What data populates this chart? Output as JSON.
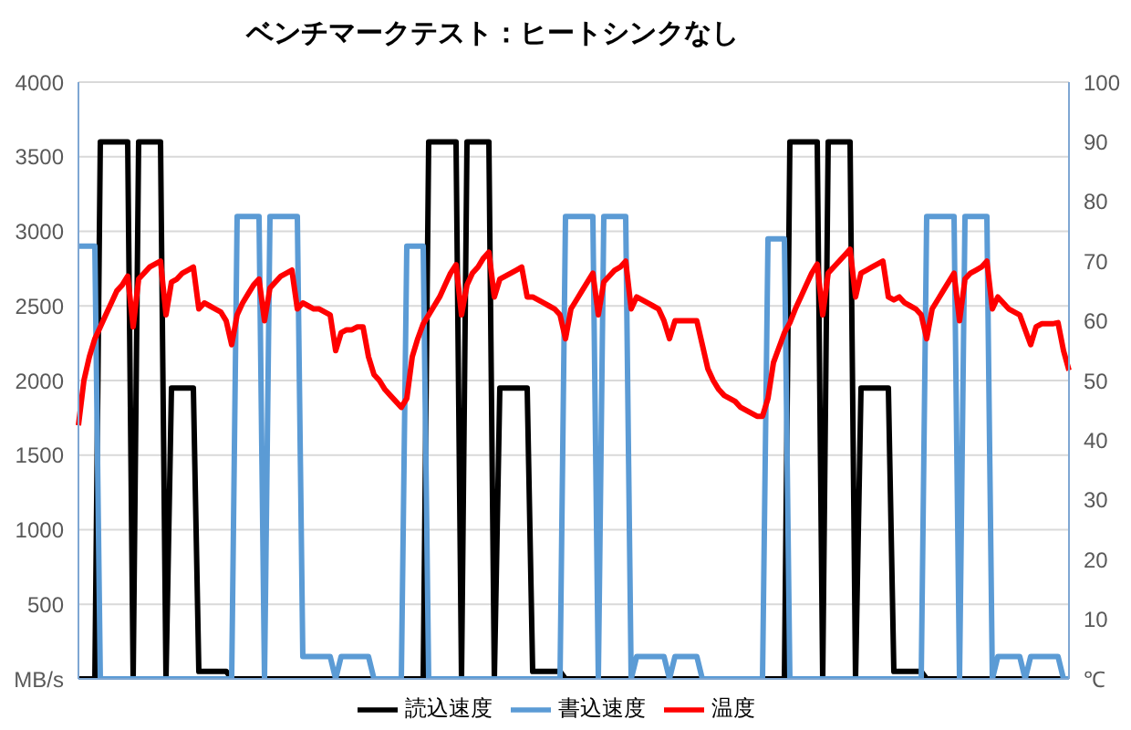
{
  "chart_data": {
    "type": "line",
    "title": "ベンチマークテスト：ヒートシンクなし",
    "categories": [
      null,
      null,
      null,
      null,
      null,
      null,
      null,
      null,
      null,
      null,
      null,
      null,
      null,
      null,
      null,
      null,
      null,
      null,
      null,
      null,
      null,
      null,
      null,
      null,
      null,
      null,
      null,
      null,
      null,
      null,
      null,
      null,
      null,
      null,
      null,
      null,
      null,
      null,
      null,
      null,
      null,
      null,
      null,
      null,
      null,
      null,
      null,
      null,
      null,
      null,
      null,
      null,
      null,
      null,
      null,
      null,
      null,
      null,
      null,
      null,
      null,
      null,
      null,
      null,
      null,
      null,
      null,
      null,
      null,
      null,
      null,
      null,
      null,
      null,
      null,
      null,
      null,
      null,
      null,
      null,
      null,
      null,
      null,
      null,
      null,
      null,
      null,
      null,
      null,
      null,
      null,
      null,
      null,
      null,
      null,
      null,
      null,
      null,
      null,
      null,
      null,
      null,
      null,
      null,
      null,
      null,
      null,
      null,
      null,
      null,
      null,
      null,
      null,
      null,
      null,
      null,
      null,
      null,
      null,
      null,
      null,
      null,
      null,
      null,
      null,
      null,
      null,
      null,
      null,
      null,
      null,
      null,
      null,
      null,
      null,
      null,
      null,
      null,
      null,
      null,
      null,
      null,
      null,
      null,
      null,
      null,
      null,
      null,
      null,
      null,
      null,
      null,
      null,
      null,
      null,
      null,
      null,
      null,
      null,
      null,
      null,
      null,
      null,
      null,
      null,
      null,
      null,
      null,
      null,
      null,
      null,
      null,
      null,
      null,
      null,
      null,
      null,
      null,
      null,
      null,
      null,
      null
    ],
    "series": [
      {
        "name": "読込速度",
        "color": "#000000",
        "values": [
          0,
          0,
          0,
          0,
          3600,
          3600,
          3600,
          3600,
          3600,
          3600,
          0,
          3600,
          3600,
          3600,
          3600,
          3600,
          0,
          1950,
          1950,
          1950,
          1950,
          1950,
          50,
          50,
          50,
          50,
          50,
          50,
          0,
          0,
          0,
          0,
          0,
          0,
          0,
          0,
          0,
          0,
          0,
          0,
          0,
          0,
          0,
          0,
          0,
          0,
          0,
          0,
          0,
          0,
          0,
          0,
          0,
          0,
          0,
          0,
          0,
          0,
          0,
          0,
          0,
          0,
          0,
          0,
          3600,
          3600,
          3600,
          3600,
          3600,
          3600,
          0,
          3600,
          3600,
          3600,
          3600,
          3600,
          0,
          1950,
          1950,
          1950,
          1950,
          1950,
          1950,
          50,
          50,
          50,
          50,
          50,
          50,
          0,
          0,
          0,
          0,
          0,
          0,
          0,
          0,
          0,
          0,
          0,
          0,
          0,
          0,
          0,
          0,
          0,
          0,
          0,
          0,
          0,
          0,
          0,
          0,
          0,
          0,
          0,
          0,
          0,
          0,
          0,
          0,
          0,
          0,
          0,
          0,
          0,
          0,
          0,
          0,
          0,
          3600,
          3600,
          3600,
          3600,
          3600,
          3600,
          0,
          3600,
          3600,
          3600,
          3600,
          3600,
          0,
          1950,
          1950,
          1950,
          1950,
          1950,
          1950,
          50,
          50,
          50,
          50,
          50,
          50,
          0,
          0,
          0,
          0,
          0,
          0,
          0,
          0,
          0,
          0,
          0,
          0,
          0,
          0,
          0,
          0,
          0,
          0,
          0,
          0,
          0,
          0,
          0,
          0,
          0,
          0,
          0
        ]
      },
      {
        "name": "書込速度",
        "color": "#5b9bd5",
        "values": [
          2900,
          2900,
          2900,
          2900,
          0,
          0,
          0,
          0,
          0,
          0,
          0,
          0,
          0,
          0,
          0,
          0,
          0,
          0,
          0,
          0,
          0,
          0,
          0,
          0,
          0,
          0,
          0,
          0,
          0,
          3100,
          3100,
          3100,
          3100,
          3100,
          0,
          3100,
          3100,
          3100,
          3100,
          3100,
          3100,
          150,
          150,
          150,
          150,
          150,
          150,
          0,
          150,
          150,
          150,
          150,
          150,
          150,
          0,
          0,
          0,
          0,
          0,
          0,
          2900,
          2900,
          2900,
          2900,
          0,
          0,
          0,
          0,
          0,
          0,
          0,
          0,
          0,
          0,
          0,
          0,
          0,
          0,
          0,
          0,
          0,
          0,
          0,
          0,
          0,
          0,
          0,
          0,
          0,
          3100,
          3100,
          3100,
          3100,
          3100,
          3100,
          0,
          3100,
          3100,
          3100,
          3100,
          3100,
          0,
          150,
          150,
          150,
          150,
          150,
          150,
          0,
          150,
          150,
          150,
          150,
          150,
          0,
          0,
          0,
          0,
          0,
          0,
          0,
          0,
          0,
          0,
          0,
          0,
          2950,
          2950,
          2950,
          2950,
          0,
          0,
          0,
          0,
          0,
          0,
          0,
          0,
          0,
          0,
          0,
          0,
          0,
          0,
          0,
          0,
          0,
          0,
          0,
          0,
          0,
          0,
          0,
          0,
          0,
          3100,
          3100,
          3100,
          3100,
          3100,
          3100,
          0,
          3100,
          3100,
          3100,
          3100,
          3100,
          0,
          150,
          150,
          150,
          150,
          150,
          0,
          150,
          150,
          150,
          150,
          150,
          150,
          0,
          0
        ]
      },
      {
        "name": "温度",
        "color": "#ff0000",
        "axis": "y2",
        "values": [
          42.5,
          50,
          54,
          57,
          59,
          61,
          63,
          65,
          66,
          67.5,
          59,
          67,
          68,
          69,
          69.5,
          70,
          61,
          66.5,
          67,
          68,
          68.5,
          69,
          62,
          63,
          62.5,
          62,
          61.5,
          60,
          56,
          61,
          63,
          64.5,
          66,
          67,
          60,
          65.5,
          66.5,
          67.5,
          68,
          68.5,
          62,
          63,
          62.5,
          62,
          62,
          61.5,
          61,
          55,
          58,
          58.5,
          58.5,
          59,
          59,
          54,
          51,
          50,
          48.5,
          47.5,
          46.5,
          45.5,
          47,
          54,
          57,
          59.5,
          61,
          62.5,
          64,
          66,
          68,
          69.4,
          61,
          66,
          68,
          69,
          70.5,
          71.5,
          64,
          67,
          67.5,
          68,
          68.5,
          69,
          64,
          64,
          63.5,
          63,
          62.5,
          62,
          61,
          57,
          62,
          63.5,
          65,
          66.5,
          68,
          61,
          66.5,
          67.5,
          68.5,
          69,
          70,
          62,
          64,
          63.5,
          63,
          62.5,
          62,
          60,
          57,
          60,
          60,
          60,
          60,
          60,
          56,
          52,
          50,
          48.5,
          47.5,
          47,
          46.5,
          45.5,
          45,
          44.5,
          44,
          44,
          47,
          53,
          55.5,
          58,
          59.7,
          62,
          64,
          66,
          68,
          69.5,
          61,
          68,
          69,
          70,
          71,
          72,
          64,
          68,
          68.5,
          69,
          69.5,
          70,
          64,
          63.5,
          64,
          63,
          62.5,
          62,
          61,
          57,
          62,
          63.5,
          65,
          66.5,
          68,
          60,
          67,
          68,
          68.5,
          69,
          70,
          62,
          64,
          63,
          62,
          61.5,
          61,
          58.5,
          56,
          59,
          59.5,
          59.5,
          59.5,
          59.7,
          55,
          51.7
        ]
      }
    ],
    "ylim": [
      0,
      4000
    ],
    "yticks": [
      {
        "value": 0,
        "label": "MB/s"
      },
      500,
      1000,
      1500,
      2000,
      2500,
      3000,
      3500,
      4000
    ],
    "y2lim": [
      0,
      100
    ],
    "y2ticks": [
      {
        "value": 0,
        "label": "℃"
      },
      10,
      20,
      30,
      40,
      50,
      60,
      70,
      80,
      90,
      100
    ],
    "grid": "y",
    "legend": "bottom",
    "marker": "none",
    "line_style": "solid"
  }
}
